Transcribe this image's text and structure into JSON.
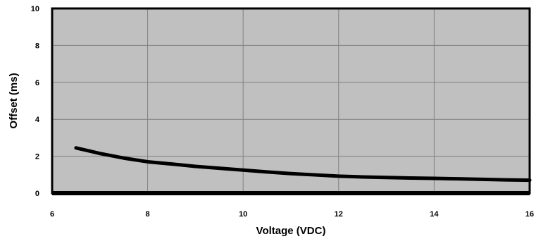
{
  "chart_data": {
    "type": "line",
    "title": "",
    "xlabel": "Voltage (VDC)",
    "ylabel": "Offset (ms)",
    "xlim": [
      6,
      16
    ],
    "ylim": [
      0,
      10
    ],
    "x_ticks": [
      6,
      8,
      10,
      12,
      14,
      16
    ],
    "y_ticks": [
      0,
      2,
      4,
      6,
      8,
      10
    ],
    "x_tick_labels": [
      "6",
      "8",
      "10",
      "12",
      "14",
      "16"
    ],
    "y_tick_labels": [
      "0",
      "2",
      "4",
      "6",
      "8",
      "10"
    ],
    "grid": true,
    "legend": "none",
    "colors": {
      "plot_background": "#c0c0c0",
      "grid": "#808080",
      "frame": "#000000",
      "line": "#000000"
    },
    "series": [
      {
        "x": [
          6.5,
          7,
          7.5,
          8,
          8.5,
          9,
          9.5,
          10,
          10.5,
          11,
          11.5,
          12,
          12.5,
          13,
          13.5,
          14,
          14.5,
          15,
          15.5,
          16
        ],
        "y": [
          2.45,
          2.15,
          1.9,
          1.7,
          1.58,
          1.45,
          1.35,
          1.25,
          1.15,
          1.06,
          0.99,
          0.92,
          0.88,
          0.85,
          0.82,
          0.8,
          0.78,
          0.75,
          0.72,
          0.7
        ]
      }
    ]
  }
}
